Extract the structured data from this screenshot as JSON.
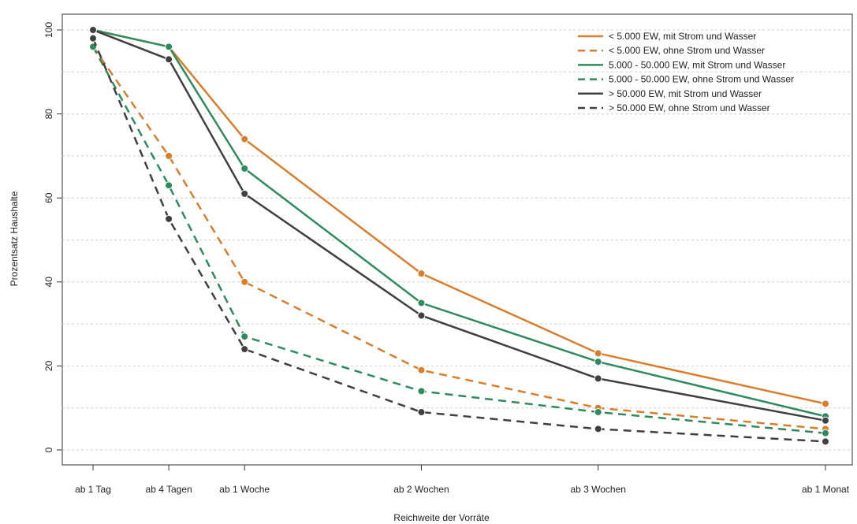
{
  "chart_data": {
    "type": "line",
    "title": "",
    "xlabel": "Reichweite der Vorräte",
    "ylabel": "Prozentsatz Haushalte",
    "categories": [
      "ab 1 Tag",
      "ab 4 Tagen",
      "ab 1 Woche",
      "ab 2 Wochen",
      "ab 3 Wochen",
      "ab 1 Monat"
    ],
    "x_days": [
      1,
      4,
      7,
      14,
      21,
      30
    ],
    "ylim": [
      0,
      100
    ],
    "yticks": [
      0,
      20,
      40,
      60,
      80,
      100
    ],
    "grid": "horizontal dotted",
    "legend": "top-right",
    "series": [
      {
        "name": "< 5.000 EW, mit Strom und Wasser",
        "color": "#d97e2c",
        "dash": "solid",
        "values": [
          100,
          96,
          74,
          42,
          23,
          11
        ]
      },
      {
        "name": "< 5.000 EW, ohne Strom und Wasser",
        "color": "#d97e2c",
        "dash": "dashed",
        "values": [
          96,
          70,
          40,
          19,
          10,
          5
        ]
      },
      {
        "name": "5.000 - 50.000 EW, mit Strom und Wasser",
        "color": "#2e8b5e",
        "dash": "solid",
        "values": [
          100,
          96,
          67,
          35,
          21,
          8
        ]
      },
      {
        "name": "5.000 - 50.000 EW, ohne Strom und Wasser",
        "color": "#2e8b5e",
        "dash": "dashed",
        "values": [
          96,
          63,
          27,
          14,
          9,
          4
        ]
      },
      {
        "name": "> 50.000 EW, mit Strom und Wasser",
        "color": "#404040",
        "dash": "solid",
        "values": [
          100,
          93,
          61,
          32,
          17,
          7
        ]
      },
      {
        "name": "> 50.000 EW, ohne Strom und Wasser",
        "color": "#404040",
        "dash": "dashed",
        "values": [
          98,
          55,
          24,
          9,
          5,
          2
        ]
      }
    ]
  }
}
